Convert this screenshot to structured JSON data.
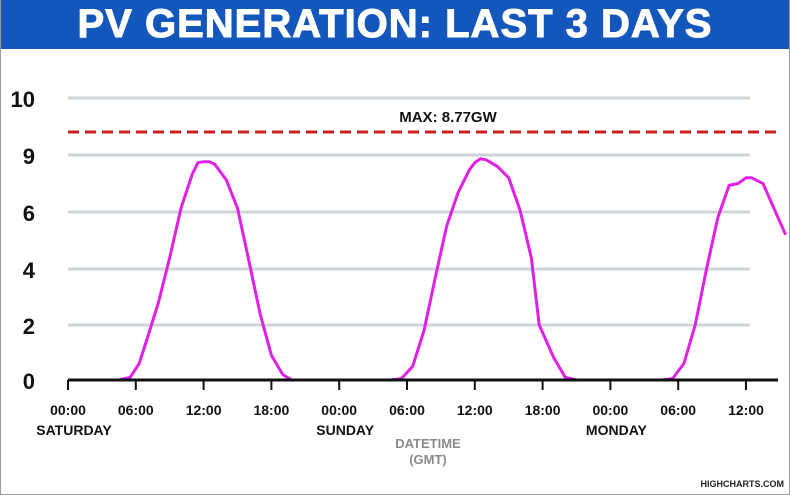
{
  "title": "PV GENERATION: LAST 3 DAYS",
  "credit": "HIGHCHARTS.COM",
  "colors": {
    "title_bg": "#1357bd",
    "line": "#e020e6",
    "max_line": "#cc2020",
    "grid": "#cfd4d8",
    "axis": "#111111",
    "axis_title": "#8a8a8a"
  },
  "chart_data": {
    "type": "line",
    "title": "",
    "xlabel": "DATETIME (GMT)",
    "ylabel": "",
    "ylim": [
      0,
      10
    ],
    "y_ticks": [
      0,
      2,
      4,
      6,
      9,
      10
    ],
    "y_tick_labels": [
      "0",
      "2",
      "4",
      "6",
      "9",
      "10"
    ],
    "x_ticks": [
      {
        "x": 0,
        "time": "00:00",
        "day": "SATURDAY"
      },
      {
        "x": 6,
        "time": "06:00",
        "day": ""
      },
      {
        "x": 12,
        "time": "12:00",
        "day": ""
      },
      {
        "x": 18,
        "time": "18:00",
        "day": ""
      },
      {
        "x": 24,
        "time": "00:00",
        "day": "SUNDAY"
      },
      {
        "x": 30,
        "time": "06:00",
        "day": ""
      },
      {
        "x": 36,
        "time": "12:00",
        "day": ""
      },
      {
        "x": 42,
        "time": "18:00",
        "day": ""
      },
      {
        "x": 48,
        "time": "00:00",
        "day": "MONDAY"
      },
      {
        "x": 54,
        "time": "06:00",
        "day": ""
      },
      {
        "x": 60,
        "time": "12:00",
        "day": ""
      }
    ],
    "x_unit": "hours since Saturday 00:00 GMT",
    "xlim": [
      0,
      63.5
    ],
    "max_line": {
      "value": 8.77,
      "label": "MAX: 8.77GW"
    },
    "series": [
      {
        "name": "",
        "x": [
          0,
          4.5,
          5.5,
          6.3,
          7,
          8,
          9,
          10,
          11,
          11.5,
          12,
          12.5,
          13,
          14,
          15,
          16,
          17,
          18,
          19,
          19.8,
          20.5,
          24,
          28.5,
          29.5,
          30.5,
          31.5,
          32.5,
          33.5,
          34.5,
          35.5,
          36,
          36.5,
          37,
          38,
          39,
          40,
          41,
          41.7,
          43,
          44,
          45,
          48,
          52.5,
          53.5,
          54.5,
          55.5,
          56.5,
          57.5,
          58.5,
          59.3,
          60,
          60.5,
          61.5,
          63.5
        ],
        "y": [
          0,
          0,
          0.1,
          0.6,
          1.5,
          2.8,
          4.4,
          6.2,
          8.0,
          8.6,
          8.65,
          8.65,
          8.5,
          7.7,
          6.2,
          4.3,
          2.4,
          0.9,
          0.2,
          0,
          0,
          0,
          0,
          0.05,
          0.5,
          1.8,
          3.7,
          5.5,
          7.0,
          8.2,
          8.6,
          8.8,
          8.75,
          8.4,
          7.8,
          6.1,
          4.4,
          2.0,
          0.8,
          0.1,
          0,
          0,
          0,
          0.05,
          0.6,
          2.0,
          4.0,
          5.8,
          7.4,
          7.5,
          7.8,
          7.8,
          7.5,
          5.2
        ]
      }
    ],
    "grid": true,
    "legend": "none"
  }
}
